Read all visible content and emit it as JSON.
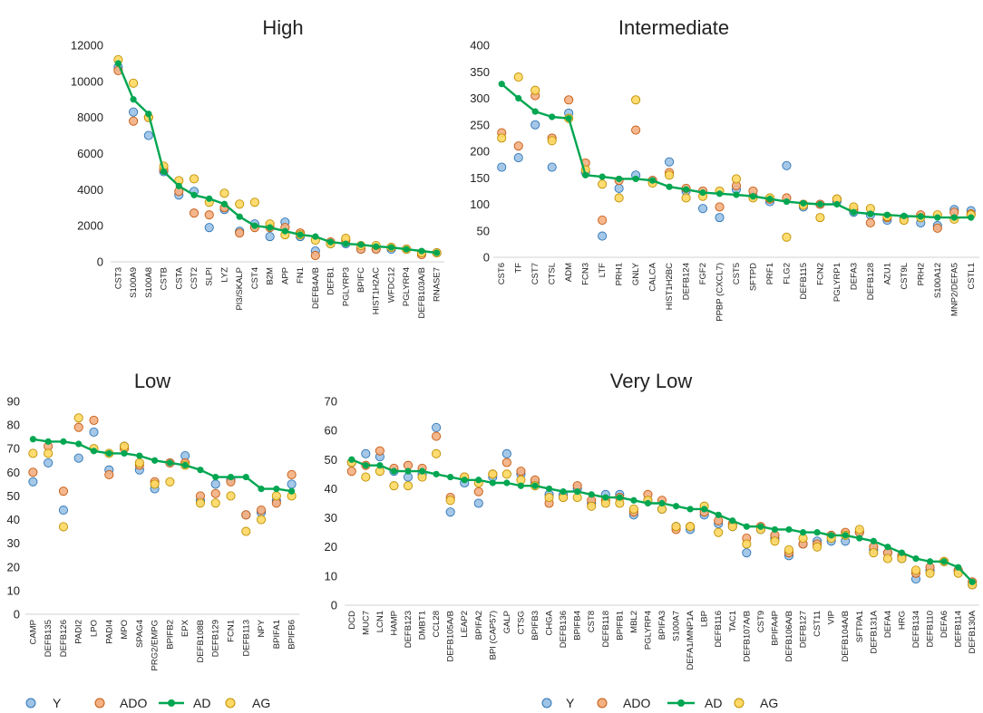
{
  "colors": {
    "Y": "#9dc3e6",
    "ADO": "#f4b183",
    "AD": "#00a651",
    "AG": "#ffd966",
    "Y_edge": "#2e75b6",
    "ADO_edge": "#c55a11",
    "AG_edge": "#bf9000"
  },
  "legend": {
    "items": [
      "Y",
      "ADO",
      "AD",
      "AG"
    ]
  },
  "chart_data": [
    {
      "id": "high",
      "type": "line",
      "title": "High",
      "ylim": [
        0,
        12000
      ],
      "yticks": [
        0,
        2000,
        4000,
        6000,
        8000,
        10000,
        12000
      ],
      "categories": [
        "CST3",
        "S100A9",
        "S100A8",
        "CSTB",
        "CSTA",
        "CST2",
        "SLPI",
        "LYZ",
        "PI3/SKALP",
        "CST4",
        "B2M",
        "APP",
        "FN1",
        "DEFB4A/B",
        "DEFB1",
        "PGLYRP3",
        "BPIFC",
        "HIST1H2AC",
        "WFDC12",
        "PGLYRP4",
        "DEFB103A/B",
        "RNASE7"
      ],
      "series": [
        {
          "name": "Y",
          "values": [
            10800,
            8300,
            7000,
            5000,
            3700,
            3900,
            1900,
            2900,
            1700,
            2100,
            1400,
            2200,
            1400,
            600,
            1000,
            1000,
            700,
            700,
            700,
            700,
            500,
            500
          ]
        },
        {
          "name": "ADO",
          "values": [
            10600,
            7800,
            8000,
            5100,
            3900,
            2700,
            2600,
            3000,
            1600,
            1900,
            1900,
            1900,
            1600,
            350,
            1100,
            1200,
            700,
            700,
            800,
            700,
            400,
            500
          ]
        },
        {
          "name": "AD",
          "values": [
            11000,
            9000,
            8200,
            5000,
            4200,
            3700,
            3500,
            3200,
            2500,
            2000,
            1900,
            1700,
            1500,
            1400,
            1100,
            1000,
            950,
            850,
            800,
            700,
            600,
            500
          ]
        },
        {
          "name": "AG",
          "values": [
            11200,
            9900,
            8000,
            5300,
            4500,
            4600,
            3300,
            3800,
            3200,
            3300,
            2100,
            1500,
            1500,
            1200,
            1000,
            1300,
            900,
            900,
            800,
            700,
            500,
            500
          ]
        }
      ]
    },
    {
      "id": "intermediate",
      "type": "line",
      "title": "Intermediate",
      "ylim": [
        0,
        400
      ],
      "yticks": [
        0,
        50,
        100,
        150,
        200,
        250,
        300,
        350,
        400
      ],
      "categories": [
        "CST6",
        "TF",
        "CST7",
        "CTSL",
        "ADM",
        "FCN3",
        "LTF",
        "PRH1",
        "GNLY",
        "CALCA",
        "HIST1H2BC",
        "DEFB124",
        "FGF2",
        "PPBP (CXCL7)",
        "CST5",
        "SFTPD",
        "PRF1",
        "FLG2",
        "DEFB115",
        "FCN2",
        "PGLYRP1",
        "DEFA3",
        "DEFB128",
        "AZU1",
        "CST9L",
        "PRH2",
        "S100A12",
        "MNP2/DEFA5",
        "CSTL1"
      ],
      "series": [
        {
          "name": "Y",
          "values": [
            170,
            188,
            250,
            170,
            272,
            160,
            40,
            130,
            155,
            145,
            180,
            125,
            92,
            75,
            128,
            115,
            105,
            173,
            95,
            100,
            105,
            85,
            80,
            70,
            75,
            65,
            60,
            90,
            88
          ]
        },
        {
          "name": "ADO",
          "values": [
            235,
            210,
            305,
            225,
            297,
            178,
            70,
            145,
            240,
            145,
            160,
            130,
            125,
            95,
            135,
            125,
            110,
            112,
            100,
            100,
            110,
            90,
            65,
            75,
            70,
            80,
            55,
            85,
            82
          ]
        },
        {
          "name": "AD",
          "values": [
            327,
            300,
            275,
            265,
            262,
            155,
            152,
            148,
            148,
            145,
            133,
            128,
            122,
            120,
            118,
            115,
            110,
            105,
            102,
            100,
            100,
            85,
            82,
            80,
            78,
            77,
            75,
            75,
            75
          ]
        },
        {
          "name": "AG",
          "values": [
            225,
            340,
            315,
            220,
            262,
            165,
            138,
            112,
            297,
            140,
            155,
            112,
            115,
            125,
            148,
            112,
            112,
            38,
            98,
            75,
            110,
            95,
            92,
            77,
            70,
            75,
            80,
            72,
            80
          ]
        }
      ]
    },
    {
      "id": "low",
      "type": "line",
      "title": "Low",
      "ylim": [
        0,
        90
      ],
      "yticks": [
        0,
        10,
        20,
        30,
        40,
        50,
        60,
        70,
        80,
        90
      ],
      "categories": [
        "CAMP",
        "DEFB135",
        "DEFB126",
        "PADI2",
        "LPO",
        "PADI4",
        "MPO",
        "SPAG4",
        "PRG2/EMPG",
        "BPIFB2",
        "EPX",
        "DEFB108B",
        "DEFB129",
        "FCN1",
        "DEFB113",
        "NPY",
        "BPIFA1",
        "BPIFB6"
      ],
      "series": [
        {
          "name": "Y",
          "values": [
            56,
            64,
            44,
            66,
            77,
            61,
            71,
            61,
            53,
            64,
            67,
            48,
            55,
            57,
            42,
            43,
            48,
            55
          ]
        },
        {
          "name": "ADO",
          "values": [
            60,
            71,
            52,
            79,
            82,
            59,
            70,
            63,
            56,
            64,
            64,
            50,
            51,
            56,
            42,
            44,
            47,
            59
          ]
        },
        {
          "name": "AD",
          "values": [
            74,
            73,
            73,
            72,
            69,
            68,
            68,
            67,
            65,
            64,
            63,
            61,
            58,
            58,
            58,
            53,
            53,
            52
          ]
        },
        {
          "name": "AG",
          "values": [
            68,
            68,
            37,
            83,
            70,
            68,
            71,
            64,
            55,
            56,
            63,
            47,
            47,
            50,
            35,
            40,
            50,
            50
          ]
        }
      ]
    },
    {
      "id": "verylow",
      "type": "line",
      "title": "Very Low",
      "ylim": [
        0,
        70
      ],
      "yticks": [
        0,
        10,
        20,
        30,
        40,
        50,
        60,
        70
      ],
      "categories": [
        "DCD",
        "MUC7",
        "LCN1",
        "HAMP",
        "DEFB123",
        "DMBT1",
        "CCL28",
        "DEFB105A/B",
        "LEAP2",
        "BPIFA2",
        "BPI (CAP57)",
        "GALP",
        "CTSG",
        "BPIFB3",
        "CHGA",
        "DEFB136",
        "BPIFB4",
        "CST8",
        "DEFB118",
        "BPIFB1",
        "MBL2",
        "PGLYRP4",
        "BPIFA3",
        "S100A7",
        "DEFA1/MNP1A",
        "LBP",
        "DEFB116",
        "TAC1",
        "DEFB107A/B",
        "CST9",
        "BPIFA4P",
        "DEFB106A/B",
        "DEFB127",
        "CST11",
        "VIP",
        "DEFB104A/B",
        "SFTPA1",
        "DEFB131A",
        "DEFA4",
        "HRG",
        "DEFB134",
        "DEFB110",
        "DEFA6",
        "DEFB114",
        "DEFB130A"
      ],
      "series": [
        {
          "name": "Y",
          "values": [
            49,
            52,
            51,
            46,
            44,
            45,
            61,
            32,
            42,
            35,
            44,
            52,
            45,
            42,
            38,
            38,
            40,
            35,
            38,
            38,
            31,
            36,
            33,
            27,
            26,
            31,
            28,
            27,
            18,
            26,
            23,
            17,
            21,
            22,
            22,
            22,
            25,
            19,
            18,
            16,
            9,
            12,
            15,
            12,
            7
          ]
        },
        {
          "name": "ADO",
          "values": [
            46,
            48,
            53,
            47,
            48,
            47,
            58,
            37,
            44,
            39,
            45,
            49,
            46,
            43,
            35,
            37,
            41,
            36,
            36,
            37,
            32,
            38,
            36,
            26,
            27,
            32,
            29,
            28,
            23,
            27,
            24,
            18,
            21,
            21,
            24,
            25,
            25,
            20,
            18,
            17,
            11,
            13,
            15,
            12,
            8
          ]
        },
        {
          "name": "AD",
          "values": [
            50,
            48,
            48,
            46,
            46,
            46,
            45,
            44,
            43,
            43,
            42,
            42,
            41,
            41,
            40,
            39,
            39,
            38,
            37,
            37,
            36,
            35,
            35,
            34,
            33,
            33,
            31,
            29,
            27,
            27,
            26,
            26,
            25,
            25,
            24,
            24,
            23,
            22,
            20,
            18,
            16,
            15,
            15,
            13,
            8
          ]
        },
        {
          "name": "AG",
          "values": [
            49,
            44,
            46,
            41,
            41,
            44,
            52,
            36,
            44,
            42,
            45,
            45,
            43,
            41,
            37,
            37,
            37,
            34,
            35,
            35,
            33,
            36,
            33,
            27,
            27,
            34,
            25,
            27,
            21,
            26,
            22,
            19,
            23,
            20,
            23,
            24,
            26,
            18,
            16,
            16,
            12,
            11,
            15,
            11,
            7
          ]
        }
      ]
    }
  ]
}
